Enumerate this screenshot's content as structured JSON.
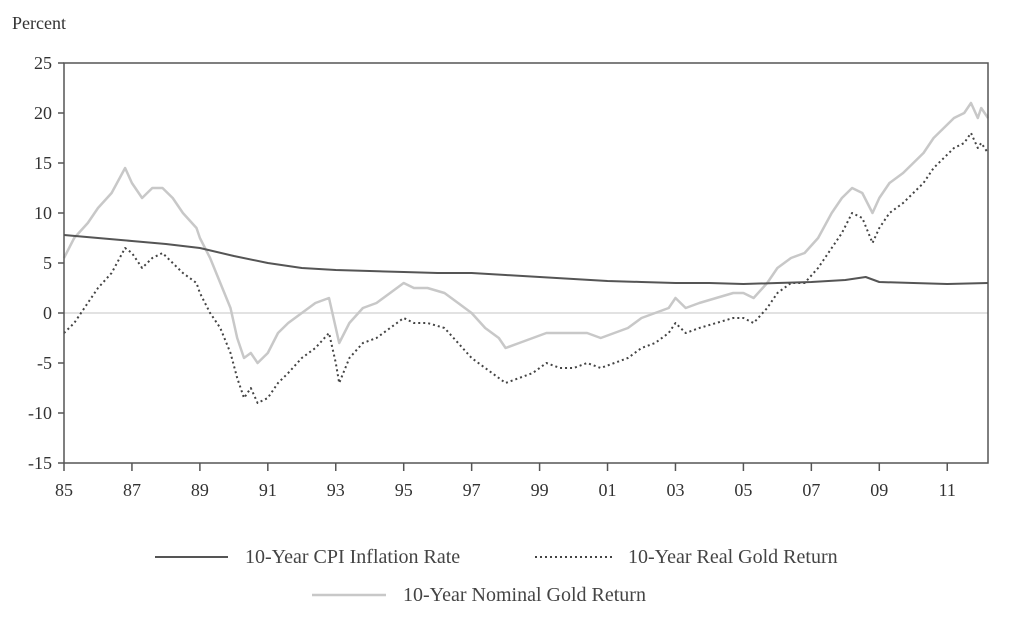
{
  "chart_data": {
    "type": "line",
    "title": "",
    "ylabel": "Percent",
    "xlabel": "",
    "xlim": [
      1985,
      2012.2
    ],
    "ylim": [
      -15,
      25
    ],
    "x_ticks": [
      {
        "value": 1985,
        "label": "85"
      },
      {
        "value": 1987,
        "label": "87"
      },
      {
        "value": 1989,
        "label": "89"
      },
      {
        "value": 1991,
        "label": "91"
      },
      {
        "value": 1993,
        "label": "93"
      },
      {
        "value": 1995,
        "label": "95"
      },
      {
        "value": 1997,
        "label": "97"
      },
      {
        "value": 1999,
        "label": "99"
      },
      {
        "value": 2001,
        "label": "01"
      },
      {
        "value": 2003,
        "label": "03"
      },
      {
        "value": 2005,
        "label": "05"
      },
      {
        "value": 2007,
        "label": "07"
      },
      {
        "value": 2009,
        "label": "09"
      },
      {
        "value": 2011,
        "label": "11"
      }
    ],
    "y_ticks": [
      25,
      20,
      15,
      10,
      5,
      0,
      -5,
      -10,
      -15
    ],
    "zero_line": true,
    "legend_position": "bottom",
    "series": [
      {
        "name": "10-Year CPI Inflation Rate",
        "style": "solid",
        "color": "#555555",
        "points": [
          [
            1985.0,
            7.8
          ],
          [
            1986.0,
            7.5
          ],
          [
            1987.0,
            7.2
          ],
          [
            1988.0,
            6.9
          ],
          [
            1989.0,
            6.5
          ],
          [
            1990.0,
            5.7
          ],
          [
            1991.0,
            5.0
          ],
          [
            1992.0,
            4.5
          ],
          [
            1993.0,
            4.3
          ],
          [
            1994.0,
            4.2
          ],
          [
            1995.0,
            4.1
          ],
          [
            1996.0,
            4.0
          ],
          [
            1997.0,
            4.0
          ],
          [
            1998.0,
            3.8
          ],
          [
            1999.0,
            3.6
          ],
          [
            2000.0,
            3.4
          ],
          [
            2001.0,
            3.2
          ],
          [
            2002.0,
            3.1
          ],
          [
            2003.0,
            3.0
          ],
          [
            2004.0,
            3.0
          ],
          [
            2005.0,
            2.9
          ],
          [
            2006.0,
            3.0
          ],
          [
            2007.0,
            3.1
          ],
          [
            2008.0,
            3.3
          ],
          [
            2008.6,
            3.6
          ],
          [
            2009.0,
            3.1
          ],
          [
            2010.0,
            3.0
          ],
          [
            2011.0,
            2.9
          ],
          [
            2012.2,
            3.0
          ]
        ]
      },
      {
        "name": "10-Year Real Gold Return",
        "style": "dotted",
        "color": "#444444",
        "points": [
          [
            1985.0,
            -2.0
          ],
          [
            1985.3,
            -1.0
          ],
          [
            1985.7,
            1.0
          ],
          [
            1986.0,
            2.5
          ],
          [
            1986.4,
            4.0
          ],
          [
            1986.8,
            6.5
          ],
          [
            1987.0,
            6.0
          ],
          [
            1987.3,
            4.5
          ],
          [
            1987.6,
            5.5
          ],
          [
            1987.9,
            6.0
          ],
          [
            1988.2,
            5.0
          ],
          [
            1988.5,
            4.0
          ],
          [
            1988.9,
            3.0
          ],
          [
            1989.0,
            2.0
          ],
          [
            1989.3,
            0.0
          ],
          [
            1989.6,
            -1.5
          ],
          [
            1989.9,
            -4.0
          ],
          [
            1990.1,
            -6.5
          ],
          [
            1990.3,
            -8.5
          ],
          [
            1990.5,
            -7.5
          ],
          [
            1990.7,
            -9.0
          ],
          [
            1991.0,
            -8.5
          ],
          [
            1991.3,
            -7.0
          ],
          [
            1991.6,
            -6.0
          ],
          [
            1992.0,
            -4.5
          ],
          [
            1992.4,
            -3.5
          ],
          [
            1992.8,
            -2.0
          ],
          [
            1993.0,
            -5.0
          ],
          [
            1993.1,
            -7.0
          ],
          [
            1993.4,
            -4.5
          ],
          [
            1993.8,
            -3.0
          ],
          [
            1994.2,
            -2.5
          ],
          [
            1994.6,
            -1.5
          ],
          [
            1995.0,
            -0.5
          ],
          [
            1995.3,
            -1.0
          ],
          [
            1995.7,
            -1.0
          ],
          [
            1996.2,
            -1.5
          ],
          [
            1996.6,
            -3.0
          ],
          [
            1997.0,
            -4.5
          ],
          [
            1997.4,
            -5.5
          ],
          [
            1997.8,
            -6.5
          ],
          [
            1998.0,
            -7.0
          ],
          [
            1998.4,
            -6.5
          ],
          [
            1998.8,
            -6.0
          ],
          [
            1999.2,
            -5.0
          ],
          [
            1999.6,
            -5.5
          ],
          [
            2000.0,
            -5.5
          ],
          [
            2000.4,
            -5.0
          ],
          [
            2000.8,
            -5.5
          ],
          [
            2001.2,
            -5.0
          ],
          [
            2001.6,
            -4.5
          ],
          [
            2002.0,
            -3.5
          ],
          [
            2002.4,
            -3.0
          ],
          [
            2002.8,
            -2.0
          ],
          [
            2003.0,
            -1.0
          ],
          [
            2003.3,
            -2.0
          ],
          [
            2003.7,
            -1.5
          ],
          [
            2004.2,
            -1.0
          ],
          [
            2004.7,
            -0.5
          ],
          [
            2005.0,
            -0.5
          ],
          [
            2005.3,
            -1.0
          ],
          [
            2005.7,
            0.5
          ],
          [
            2006.0,
            2.0
          ],
          [
            2006.4,
            3.0
          ],
          [
            2006.8,
            3.0
          ],
          [
            2007.2,
            4.5
          ],
          [
            2007.6,
            6.5
          ],
          [
            2007.9,
            8.0
          ],
          [
            2008.2,
            10.0
          ],
          [
            2008.5,
            9.5
          ],
          [
            2008.8,
            7.0
          ],
          [
            2009.0,
            8.5
          ],
          [
            2009.3,
            10.0
          ],
          [
            2009.7,
            11.0
          ],
          [
            2010.0,
            12.0
          ],
          [
            2010.3,
            13.0
          ],
          [
            2010.6,
            14.5
          ],
          [
            2010.9,
            15.5
          ],
          [
            2011.2,
            16.5
          ],
          [
            2011.5,
            17.0
          ],
          [
            2011.7,
            18.0
          ],
          [
            2011.9,
            16.5
          ],
          [
            2012.0,
            17.0
          ],
          [
            2012.2,
            16.0
          ]
        ]
      },
      {
        "name": "10-Year Nominal Gold Return",
        "style": "solid",
        "color": "#c8c8c8",
        "points": [
          [
            1985.0,
            5.5
          ],
          [
            1985.3,
            7.5
          ],
          [
            1985.7,
            9.0
          ],
          [
            1986.0,
            10.5
          ],
          [
            1986.4,
            12.0
          ],
          [
            1986.8,
            14.5
          ],
          [
            1987.0,
            13.0
          ],
          [
            1987.3,
            11.5
          ],
          [
            1987.6,
            12.5
          ],
          [
            1987.9,
            12.5
          ],
          [
            1988.2,
            11.5
          ],
          [
            1988.5,
            10.0
          ],
          [
            1988.9,
            8.5
          ],
          [
            1989.0,
            7.5
          ],
          [
            1989.3,
            5.5
          ],
          [
            1989.6,
            3.0
          ],
          [
            1989.9,
            0.5
          ],
          [
            1990.1,
            -2.5
          ],
          [
            1990.3,
            -4.5
          ],
          [
            1990.5,
            -4.0
          ],
          [
            1990.7,
            -5.0
          ],
          [
            1991.0,
            -4.0
          ],
          [
            1991.3,
            -2.0
          ],
          [
            1991.6,
            -1.0
          ],
          [
            1992.0,
            0.0
          ],
          [
            1992.4,
            1.0
          ],
          [
            1992.8,
            1.5
          ],
          [
            1993.0,
            -1.5
          ],
          [
            1993.1,
            -3.0
          ],
          [
            1993.4,
            -1.0
          ],
          [
            1993.8,
            0.5
          ],
          [
            1994.2,
            1.0
          ],
          [
            1994.6,
            2.0
          ],
          [
            1995.0,
            3.0
          ],
          [
            1995.3,
            2.5
          ],
          [
            1995.7,
            2.5
          ],
          [
            1996.2,
            2.0
          ],
          [
            1996.6,
            1.0
          ],
          [
            1997.0,
            0.0
          ],
          [
            1997.4,
            -1.5
          ],
          [
            1997.8,
            -2.5
          ],
          [
            1998.0,
            -3.5
          ],
          [
            1998.4,
            -3.0
          ],
          [
            1998.8,
            -2.5
          ],
          [
            1999.2,
            -2.0
          ],
          [
            1999.6,
            -2.0
          ],
          [
            2000.0,
            -2.0
          ],
          [
            2000.4,
            -2.0
          ],
          [
            2000.8,
            -2.5
          ],
          [
            2001.2,
            -2.0
          ],
          [
            2001.6,
            -1.5
          ],
          [
            2002.0,
            -0.5
          ],
          [
            2002.4,
            0.0
          ],
          [
            2002.8,
            0.5
          ],
          [
            2003.0,
            1.5
          ],
          [
            2003.3,
            0.5
          ],
          [
            2003.7,
            1.0
          ],
          [
            2004.2,
            1.5
          ],
          [
            2004.7,
            2.0
          ],
          [
            2005.0,
            2.0
          ],
          [
            2005.3,
            1.5
          ],
          [
            2005.7,
            3.0
          ],
          [
            2006.0,
            4.5
          ],
          [
            2006.4,
            5.5
          ],
          [
            2006.8,
            6.0
          ],
          [
            2007.2,
            7.5
          ],
          [
            2007.6,
            10.0
          ],
          [
            2007.9,
            11.5
          ],
          [
            2008.2,
            12.5
          ],
          [
            2008.5,
            12.0
          ],
          [
            2008.8,
            10.0
          ],
          [
            2009.0,
            11.5
          ],
          [
            2009.3,
            13.0
          ],
          [
            2009.7,
            14.0
          ],
          [
            2010.0,
            15.0
          ],
          [
            2010.3,
            16.0
          ],
          [
            2010.6,
            17.5
          ],
          [
            2010.9,
            18.5
          ],
          [
            2011.2,
            19.5
          ],
          [
            2011.5,
            20.0
          ],
          [
            2011.7,
            21.0
          ],
          [
            2011.9,
            19.5
          ],
          [
            2012.0,
            20.5
          ],
          [
            2012.2,
            19.5
          ]
        ]
      }
    ]
  }
}
